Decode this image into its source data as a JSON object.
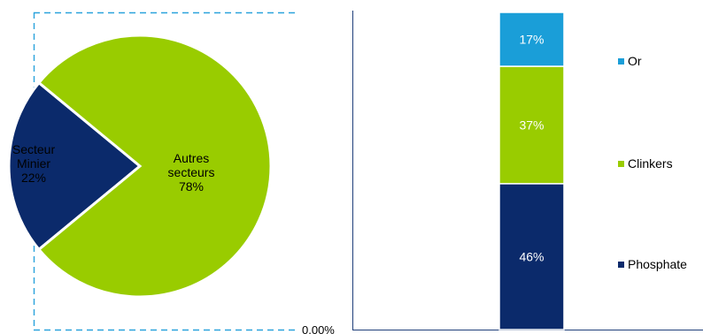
{
  "chart_data": [
    {
      "type": "pie",
      "slices": [
        {
          "name": "Secteur Minier",
          "value": 22,
          "label_lines": [
            "Secteur",
            "Minier",
            "22%"
          ],
          "color": "#0b2a6b"
        },
        {
          "name": "Autres secteurs",
          "value": 78,
          "label_lines": [
            "Autres",
            "secteurs",
            "78%"
          ],
          "color": "#99cc00"
        }
      ]
    },
    {
      "type": "bar",
      "stacked": true,
      "axis_label": "0.00%",
      "series": [
        {
          "name": "Phosphate",
          "value": 46,
          "label": "46%",
          "color": "#0b2a6b"
        },
        {
          "name": "Clinkers",
          "value": 37,
          "label": "37%",
          "color": "#99cc00"
        },
        {
          "name": "Or",
          "value": 17,
          "label": "17%",
          "color": "#1a9ed8"
        }
      ],
      "legend_placement": "right",
      "legend_order": [
        "Or",
        "Clinkers",
        "Phosphate"
      ]
    }
  ],
  "colors": {
    "border_dashed": "#2aa3dc",
    "axis": "#1f3f7a"
  }
}
